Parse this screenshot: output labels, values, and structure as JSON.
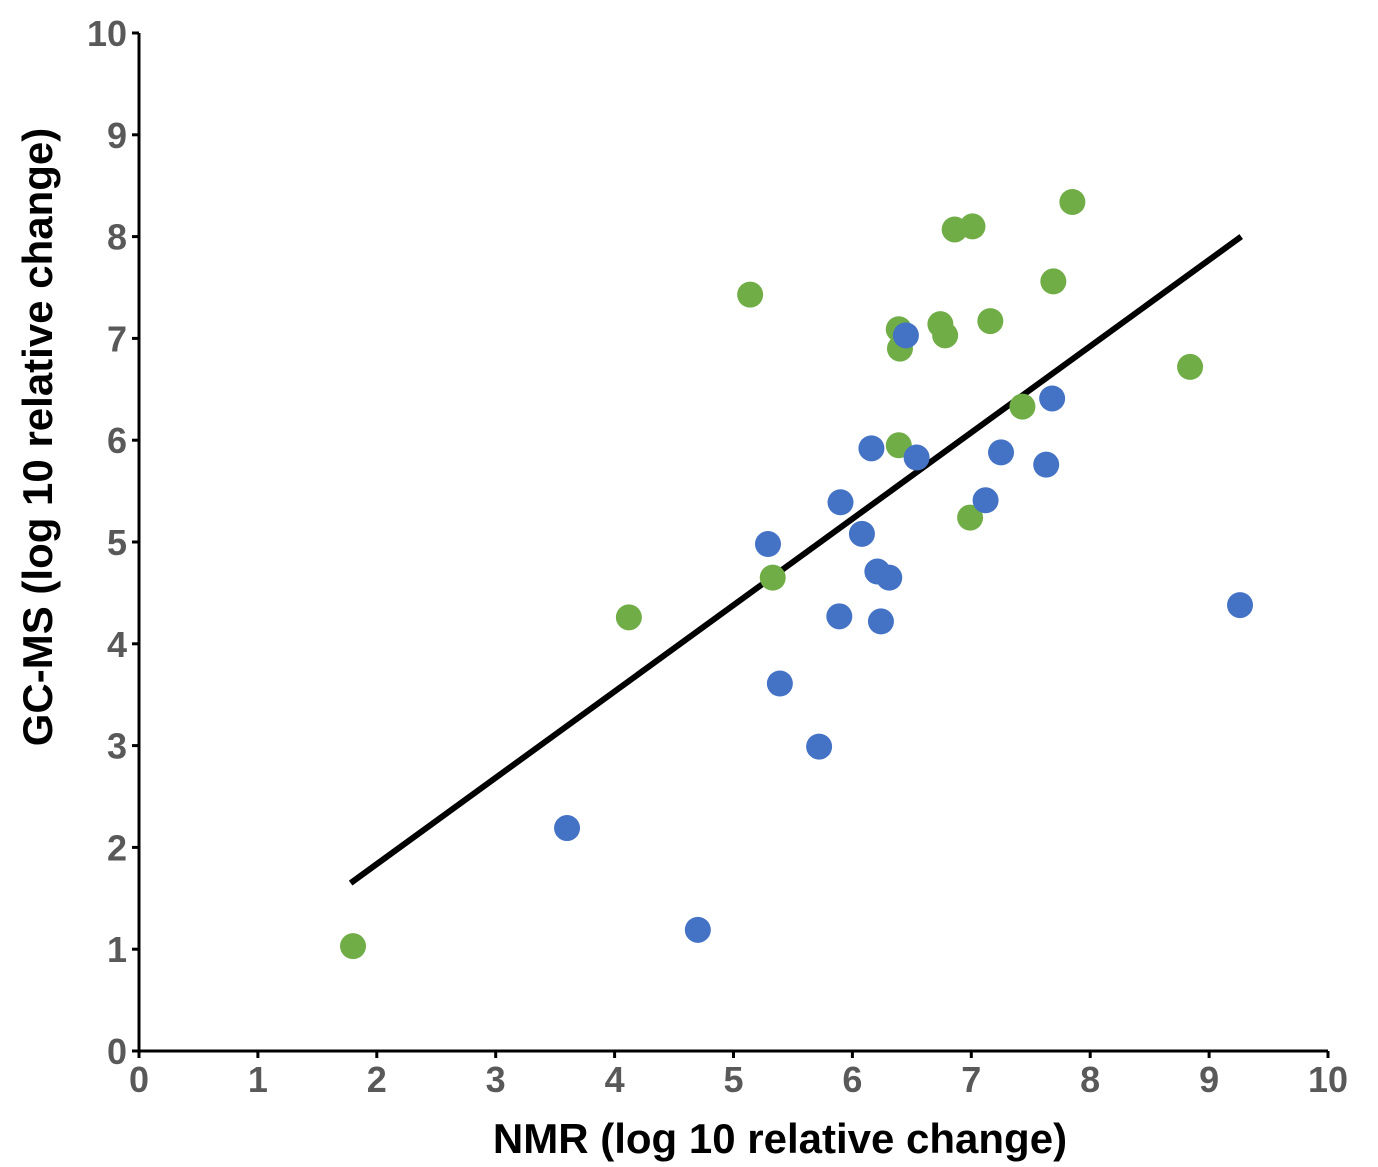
{
  "chart_data": {
    "type": "scatter",
    "title": "",
    "xlabel": "NMR (log 10 relative change)",
    "ylabel": "GC-MS (log 10 relative change)",
    "xlim": [
      0,
      10
    ],
    "ylim": [
      0,
      10
    ],
    "xticks": [
      "0",
      "1",
      "2",
      "3",
      "4",
      "5",
      "6",
      "7",
      "8",
      "9",
      "10"
    ],
    "yticks": [
      "0",
      "1",
      "2",
      "3",
      "4",
      "5",
      "6",
      "7",
      "8",
      "9",
      "10"
    ],
    "grid": false,
    "legend": "none",
    "series": [
      {
        "color": "#70ad47",
        "points": [
          [
            1.8,
            1.03
          ],
          [
            4.12,
            4.26
          ],
          [
            5.14,
            7.43
          ],
          [
            5.33,
            4.65
          ],
          [
            6.39,
            5.95
          ],
          [
            6.39,
            7.09
          ],
          [
            6.4,
            6.9
          ],
          [
            6.74,
            7.14
          ],
          [
            6.78,
            7.03
          ],
          [
            6.86,
            8.07
          ],
          [
            7.01,
            8.1
          ],
          [
            6.99,
            5.24
          ],
          [
            7.16,
            7.17
          ],
          [
            7.43,
            6.33
          ],
          [
            7.69,
            7.56
          ],
          [
            7.85,
            8.34
          ],
          [
            8.84,
            6.72
          ]
        ]
      },
      {
        "color": "#4472c4",
        "points": [
          [
            3.6,
            2.19
          ],
          [
            4.7,
            1.19
          ],
          [
            5.29,
            4.98
          ],
          [
            5.39,
            3.61
          ],
          [
            5.72,
            2.99
          ],
          [
            5.89,
            4.27
          ],
          [
            5.9,
            5.39
          ],
          [
            6.08,
            5.08
          ],
          [
            6.16,
            5.92
          ],
          [
            6.21,
            4.71
          ],
          [
            6.24,
            4.22
          ],
          [
            6.31,
            4.65
          ],
          [
            6.45,
            7.03
          ],
          [
            6.54,
            5.83
          ],
          [
            7.12,
            5.41
          ],
          [
            7.25,
            5.88
          ],
          [
            7.63,
            5.76
          ],
          [
            7.68,
            6.41
          ],
          [
            9.26,
            4.38
          ]
        ]
      }
    ],
    "trendline": {
      "color": "#000000",
      "points": [
        [
          1.78,
          1.65
        ],
        [
          9.27,
          8.0
        ]
      ]
    }
  }
}
